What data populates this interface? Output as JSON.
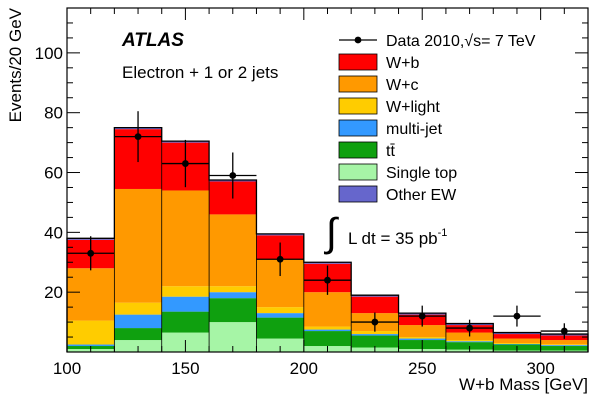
{
  "chart_data": {
    "type": "bar",
    "stacked": true,
    "experiment": "ATLAS",
    "channel": "Electron + 1 or 2 jets",
    "luminosity": {
      "integral_prefix": "L dt = 35 pb",
      "exponent": "-1"
    },
    "xlabel": "W+b Mass [GeV]",
    "ylabel": "Events/20 GeV",
    "xlim": [
      100,
      320
    ],
    "ylim": [
      0,
      115
    ],
    "x_ticks": [
      "100",
      "150",
      "200",
      "250",
      "300"
    ],
    "y_ticks": [
      "20",
      "40",
      "60",
      "80",
      "100"
    ],
    "bin_edges": [
      100,
      120,
      140,
      160,
      180,
      200,
      220,
      240,
      260,
      280,
      300,
      320
    ],
    "series": [
      {
        "name": "Single top",
        "color": "#a6f5a6",
        "values": [
          1.0,
          4.0,
          6.5,
          10.0,
          4.5,
          2.0,
          1.5,
          1.0,
          0.8,
          0.5,
          0.5
        ]
      },
      {
        "name": "tt̄",
        "color": "#0fa00f",
        "values": [
          1.0,
          4.0,
          7.0,
          8.0,
          7.0,
          5.0,
          4.0,
          3.0,
          2.5,
          2.0,
          1.5
        ]
      },
      {
        "name": "multi-jet",
        "color": "#3399ff",
        "values": [
          0.5,
          4.5,
          5.0,
          2.0,
          1.5,
          0.5,
          0.5,
          0.5,
          0.3,
          0.2,
          0.3
        ]
      },
      {
        "name": "W+light",
        "color": "#ffcc00",
        "values": [
          8.0,
          4.0,
          3.5,
          2.0,
          2.0,
          1.0,
          1.0,
          0.5,
          0.4,
          0.3,
          0.3
        ]
      },
      {
        "name": "W+c",
        "color": "#ff9900",
        "values": [
          17.5,
          38.0,
          32.0,
          24.0,
          16.0,
          11.5,
          6.0,
          4.0,
          2.5,
          1.5,
          1.4
        ]
      },
      {
        "name": "W+b",
        "color": "#ff0000",
        "values": [
          9.5,
          20.0,
          16.0,
          11.0,
          8.0,
          9.5,
          5.5,
          3.5,
          2.5,
          1.5,
          1.5
        ]
      },
      {
        "name": "Other EW",
        "color": "#6666cc",
        "values": [
          0.5,
          0.5,
          0.5,
          0.5,
          0.5,
          0.5,
          0.5,
          0.5,
          0.5,
          0.5,
          0.5
        ]
      }
    ],
    "data": {
      "name": "Data 2010,√s= 7 TeV",
      "x": [
        110,
        130,
        150,
        170,
        190,
        210,
        230,
        250,
        270,
        290,
        310
      ],
      "y": [
        33,
        72,
        63,
        59,
        31,
        24,
        10,
        12,
        8,
        12,
        7
      ],
      "err": [
        5.7,
        8.5,
        7.9,
        7.7,
        5.6,
        4.9,
        3.2,
        3.5,
        2.8,
        3.5,
        2.6
      ]
    },
    "legend_position": "top-right"
  }
}
